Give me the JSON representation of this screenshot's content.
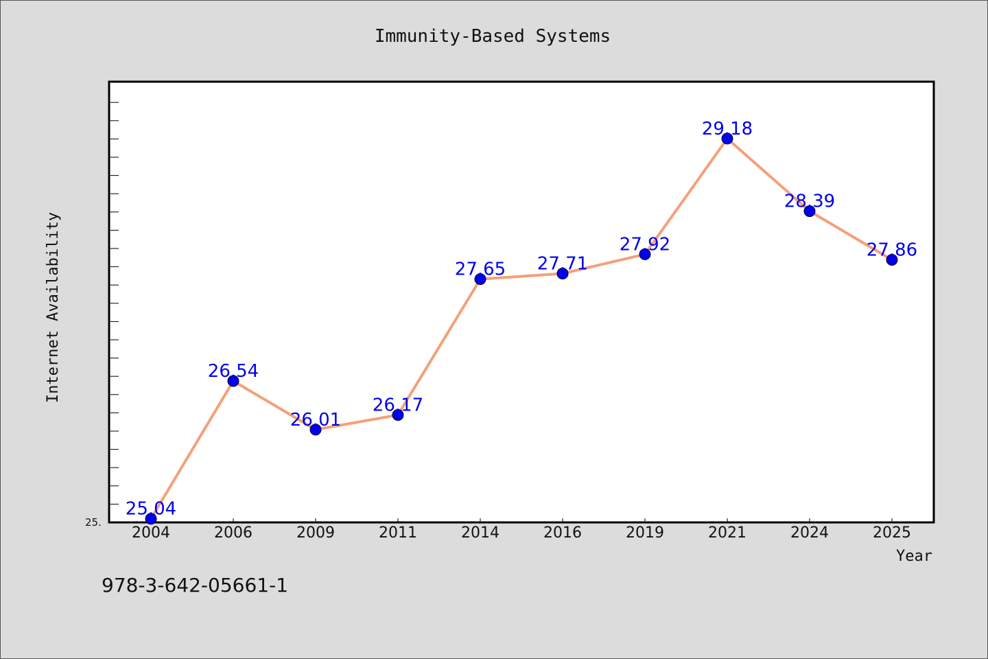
{
  "chart_data": {
    "type": "line",
    "title": "Immunity-Based Systems",
    "xlabel": "Year",
    "ylabel": "Internet Availability",
    "categories": [
      "2004",
      "2006",
      "2009",
      "2011",
      "2014",
      "2016",
      "2019",
      "2021",
      "2024",
      "2025"
    ],
    "series": [
      {
        "values": [
          25.04,
          26.54,
          26.01,
          26.17,
          27.65,
          27.71,
          27.92,
          29.18,
          28.39,
          27.86
        ],
        "labels": [
          "25.04",
          "26.54",
          "26.01",
          "26.17",
          "27.65",
          "27.71",
          "27.92",
          "29.18",
          "28.39",
          "27.86"
        ],
        "line_color": "#f4a07a",
        "marker_color": "#0000ee"
      }
    ],
    "ylim": [
      25.0,
      29.8
    ],
    "ytick_label": "25.",
    "grid": false,
    "legend": "none"
  },
  "footer": {
    "isbn": "978-3-642-05661-1"
  }
}
